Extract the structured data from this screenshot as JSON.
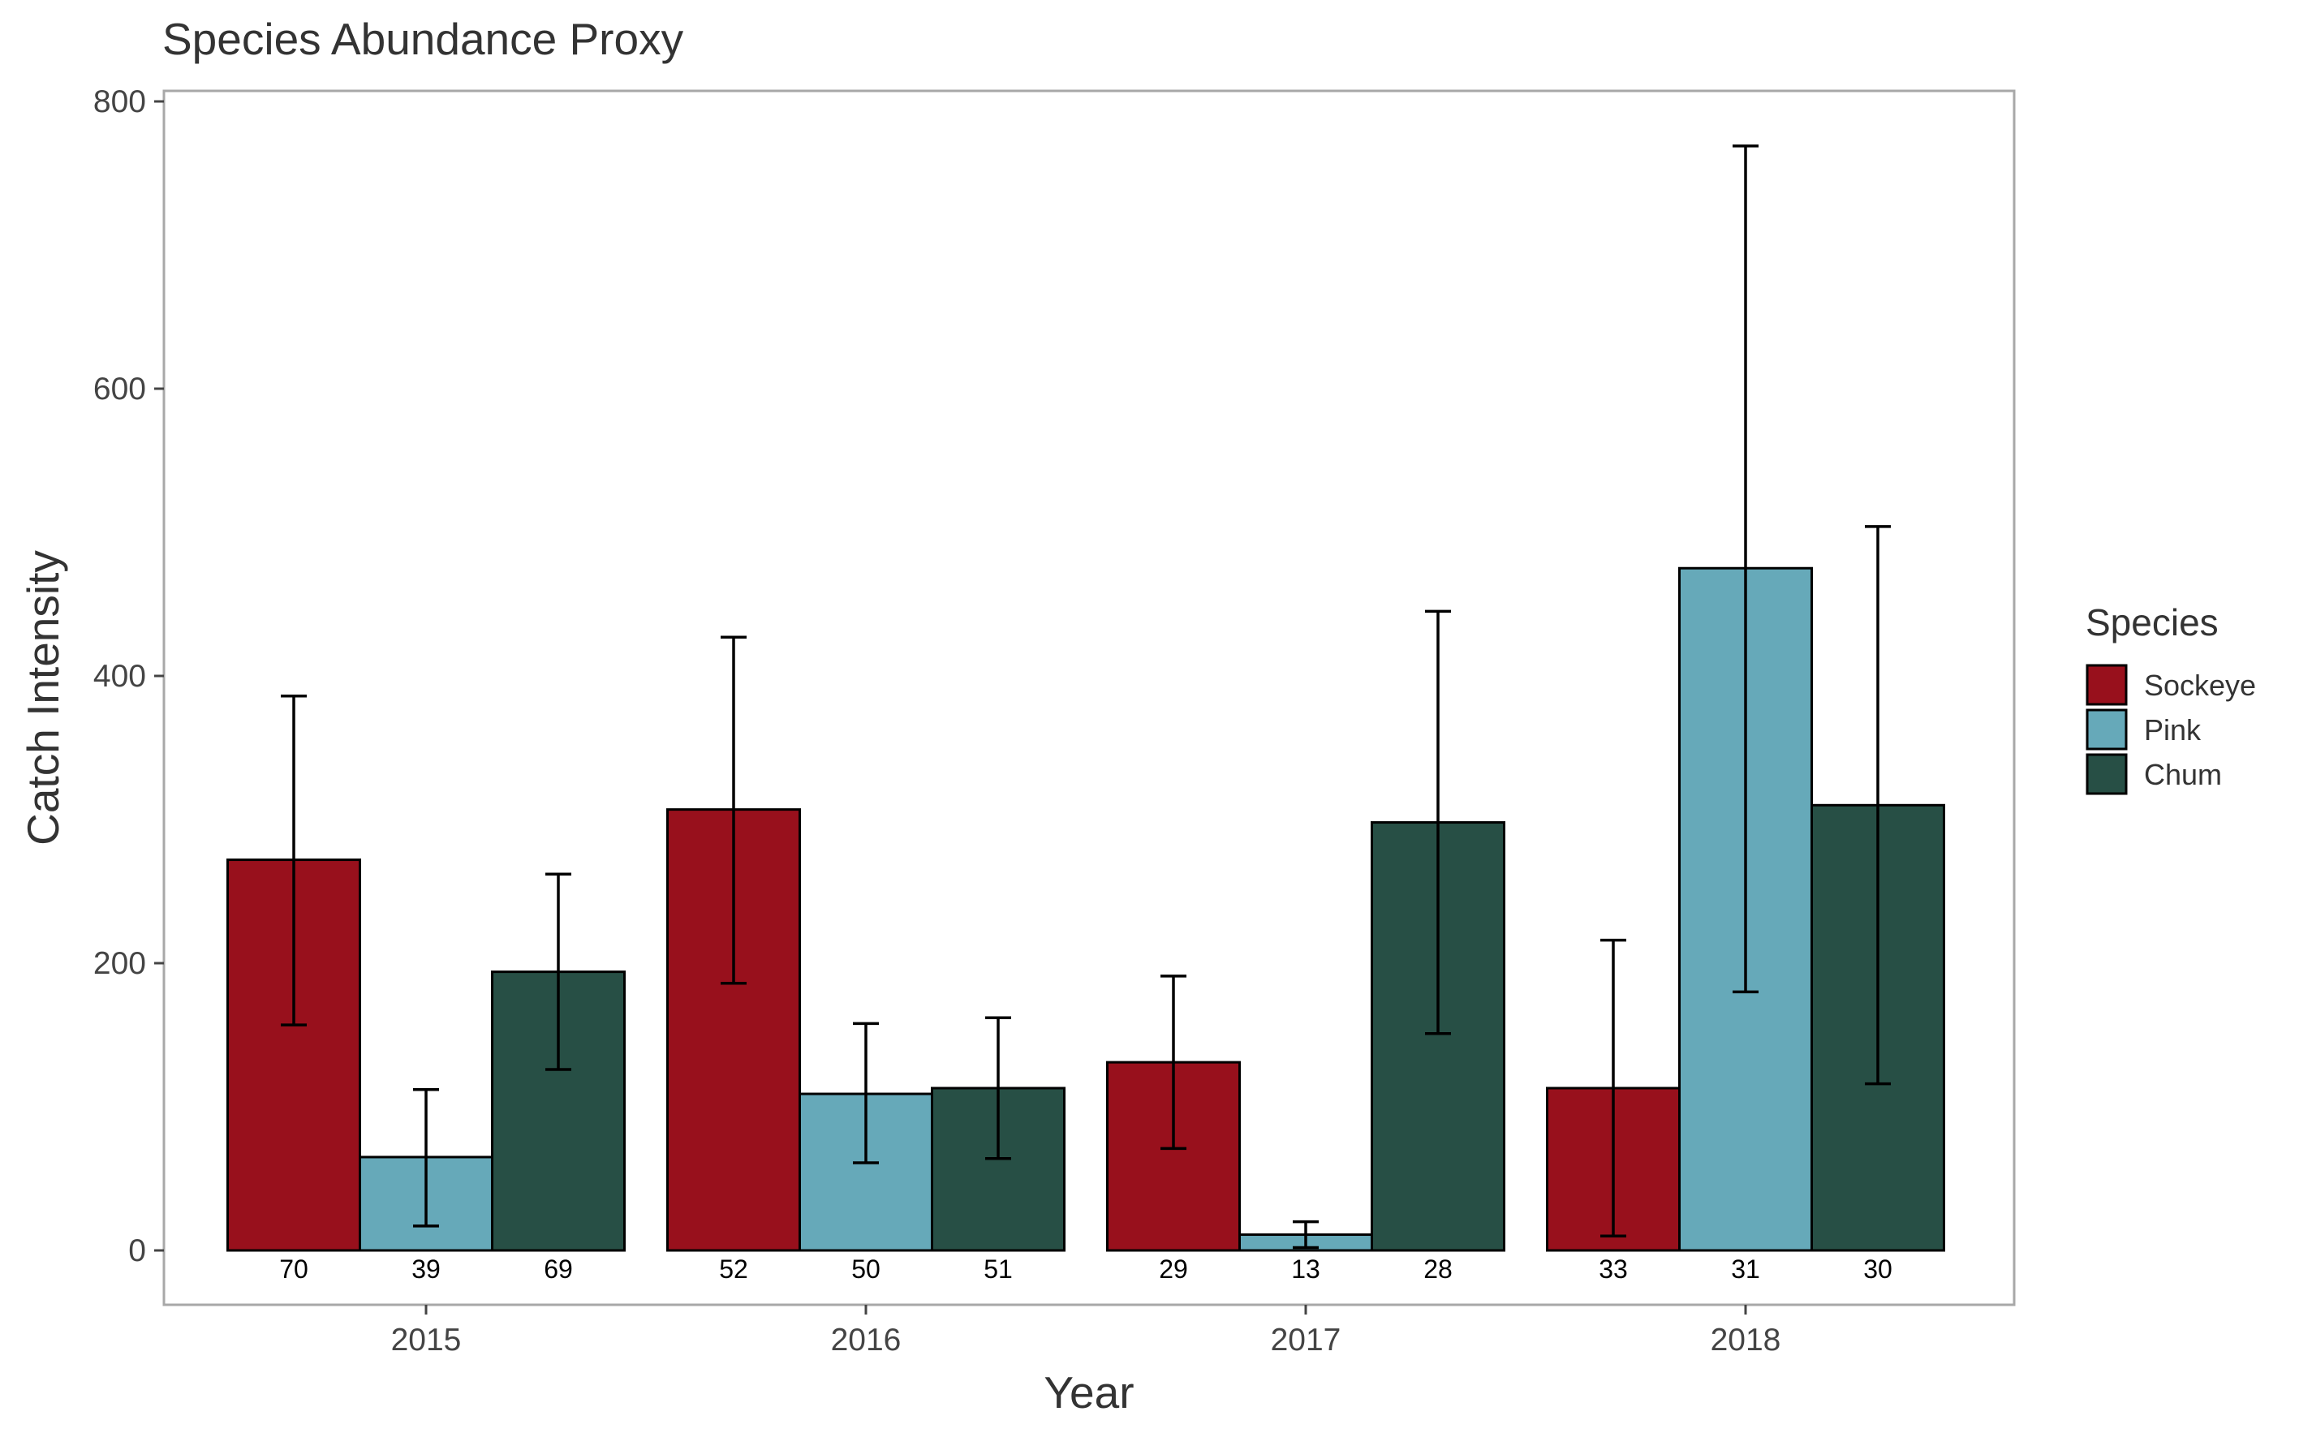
{
  "chart_data": {
    "type": "bar",
    "title": "Species Abundance Proxy",
    "xlabel": "Year",
    "ylabel": "Catch Intensity",
    "categories": [
      "2015",
      "2016",
      "2017",
      "2018"
    ],
    "ylim": [
      -38,
      808
    ],
    "yticks": [
      0,
      200,
      400,
      600,
      800
    ],
    "grid": false,
    "legend": {
      "title": "Species",
      "placement": "right"
    },
    "series": [
      {
        "name": "Sockeye",
        "color": "#98101C",
        "values": [
          272,
          307,
          131,
          113
        ],
        "err_low": [
          157,
          186,
          71,
          10
        ],
        "err_high": [
          386,
          427,
          191,
          216
        ],
        "n": [
          70,
          52,
          29,
          33
        ]
      },
      {
        "name": "Pink",
        "color": "#66A9B9",
        "values": [
          65,
          109,
          11,
          475
        ],
        "err_low": [
          17,
          61,
          2,
          180
        ],
        "err_high": [
          112,
          158,
          20,
          769
        ],
        "n": [
          39,
          50,
          13,
          31
        ]
      },
      {
        "name": "Chum",
        "color": "#274F45",
        "values": [
          194,
          113,
          298,
          310
        ],
        "err_low": [
          126,
          64,
          151,
          116
        ],
        "err_high": [
          262,
          162,
          445,
          504
        ],
        "n": [
          69,
          51,
          28,
          30
        ]
      }
    ]
  }
}
